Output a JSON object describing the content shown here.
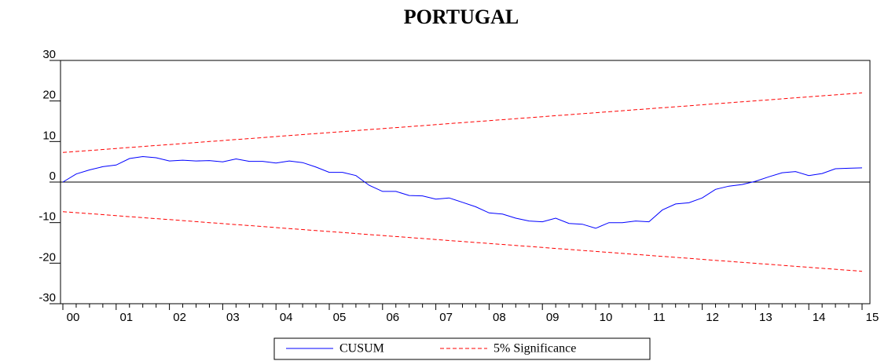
{
  "chart_data": {
    "type": "line",
    "title": "PORTUGAL",
    "categories": [
      "00",
      null,
      null,
      null,
      "01",
      null,
      null,
      null,
      "02",
      null,
      null,
      null,
      "03",
      null,
      null,
      null,
      "04",
      null,
      null,
      null,
      "05",
      null,
      null,
      null,
      "06",
      null,
      null,
      null,
      "07",
      null,
      null,
      null,
      "08",
      null,
      null,
      null,
      "09",
      null,
      null,
      null,
      "10",
      null,
      null,
      null,
      "11",
      null,
      null,
      null,
      "12",
      null,
      null,
      null,
      "13",
      null,
      null,
      null,
      "14",
      null,
      null,
      null,
      "15"
    ],
    "series": [
      {
        "name": "CUSUM",
        "color": "#0000ff",
        "dashed": false,
        "values": [
          0,
          2.0,
          3.0,
          3.8,
          4.2,
          5.8,
          6.3,
          6.0,
          5.2,
          5.4,
          5.2,
          5.3,
          5.0,
          5.7,
          5.1,
          5.1,
          4.7,
          5.2,
          4.8,
          3.7,
          2.4,
          2.4,
          1.6,
          -0.8,
          -2.3,
          -2.3,
          -3.3,
          -3.4,
          -4.2,
          -3.9,
          -5.0,
          -6.1,
          -7.6,
          -7.9,
          -8.9,
          -9.6,
          -9.8,
          -8.9,
          -10.2,
          -10.4,
          -11.4,
          -10.0,
          -10.0,
          -9.6,
          -9.8,
          -6.9,
          -5.4,
          -5.1,
          -3.9,
          -1.8,
          -1.0,
          -0.6,
          0.2,
          1.3,
          2.3,
          2.6,
          1.6,
          2.1,
          3.3,
          3.4,
          3.5
        ]
      },
      {
        "name": "5% Significance",
        "color": "#ff0000",
        "dashed": true,
        "values": [
          7.3,
          7.55,
          7.79,
          8.04,
          8.28,
          8.53,
          8.77,
          9.02,
          9.26,
          9.51,
          9.75,
          10.0,
          10.24,
          10.49,
          10.73,
          10.98,
          11.22,
          11.47,
          11.71,
          11.96,
          12.2,
          12.45,
          12.69,
          12.94,
          13.18,
          13.43,
          13.67,
          13.92,
          14.16,
          14.41,
          14.65,
          14.9,
          15.14,
          15.39,
          15.63,
          15.88,
          16.12,
          16.37,
          16.61,
          16.86,
          17.1,
          17.35,
          17.59,
          17.84,
          18.08,
          18.33,
          18.57,
          18.82,
          19.06,
          19.31,
          19.55,
          19.8,
          20.04,
          20.29,
          20.53,
          20.78,
          21.02,
          21.27,
          21.51,
          21.76,
          22.0
        ],
        "lower": [
          -7.3,
          -7.55,
          -7.79,
          -8.04,
          -8.28,
          -8.53,
          -8.77,
          -9.02,
          -9.26,
          -9.51,
          -9.75,
          -10.0,
          -10.24,
          -10.49,
          -10.73,
          -10.98,
          -11.22,
          -11.47,
          -11.71,
          -11.96,
          -12.2,
          -12.45,
          -12.69,
          -12.94,
          -13.18,
          -13.43,
          -13.67,
          -13.92,
          -14.16,
          -14.41,
          -14.65,
          -14.9,
          -15.14,
          -15.39,
          -15.63,
          -15.88,
          -16.12,
          -16.37,
          -16.61,
          -16.86,
          -17.1,
          -17.35,
          -17.59,
          -17.84,
          -18.08,
          -18.33,
          -18.57,
          -18.82,
          -19.06,
          -19.31,
          -19.55,
          -19.8,
          -20.04,
          -20.29,
          -20.53,
          -20.78,
          -21.02,
          -21.27,
          -21.51,
          -21.76,
          -22.0
        ]
      }
    ],
    "ylim": [
      -30,
      30
    ],
    "yticks": [
      -30,
      -20,
      -10,
      0,
      10,
      20,
      30
    ],
    "zero_line": true
  }
}
